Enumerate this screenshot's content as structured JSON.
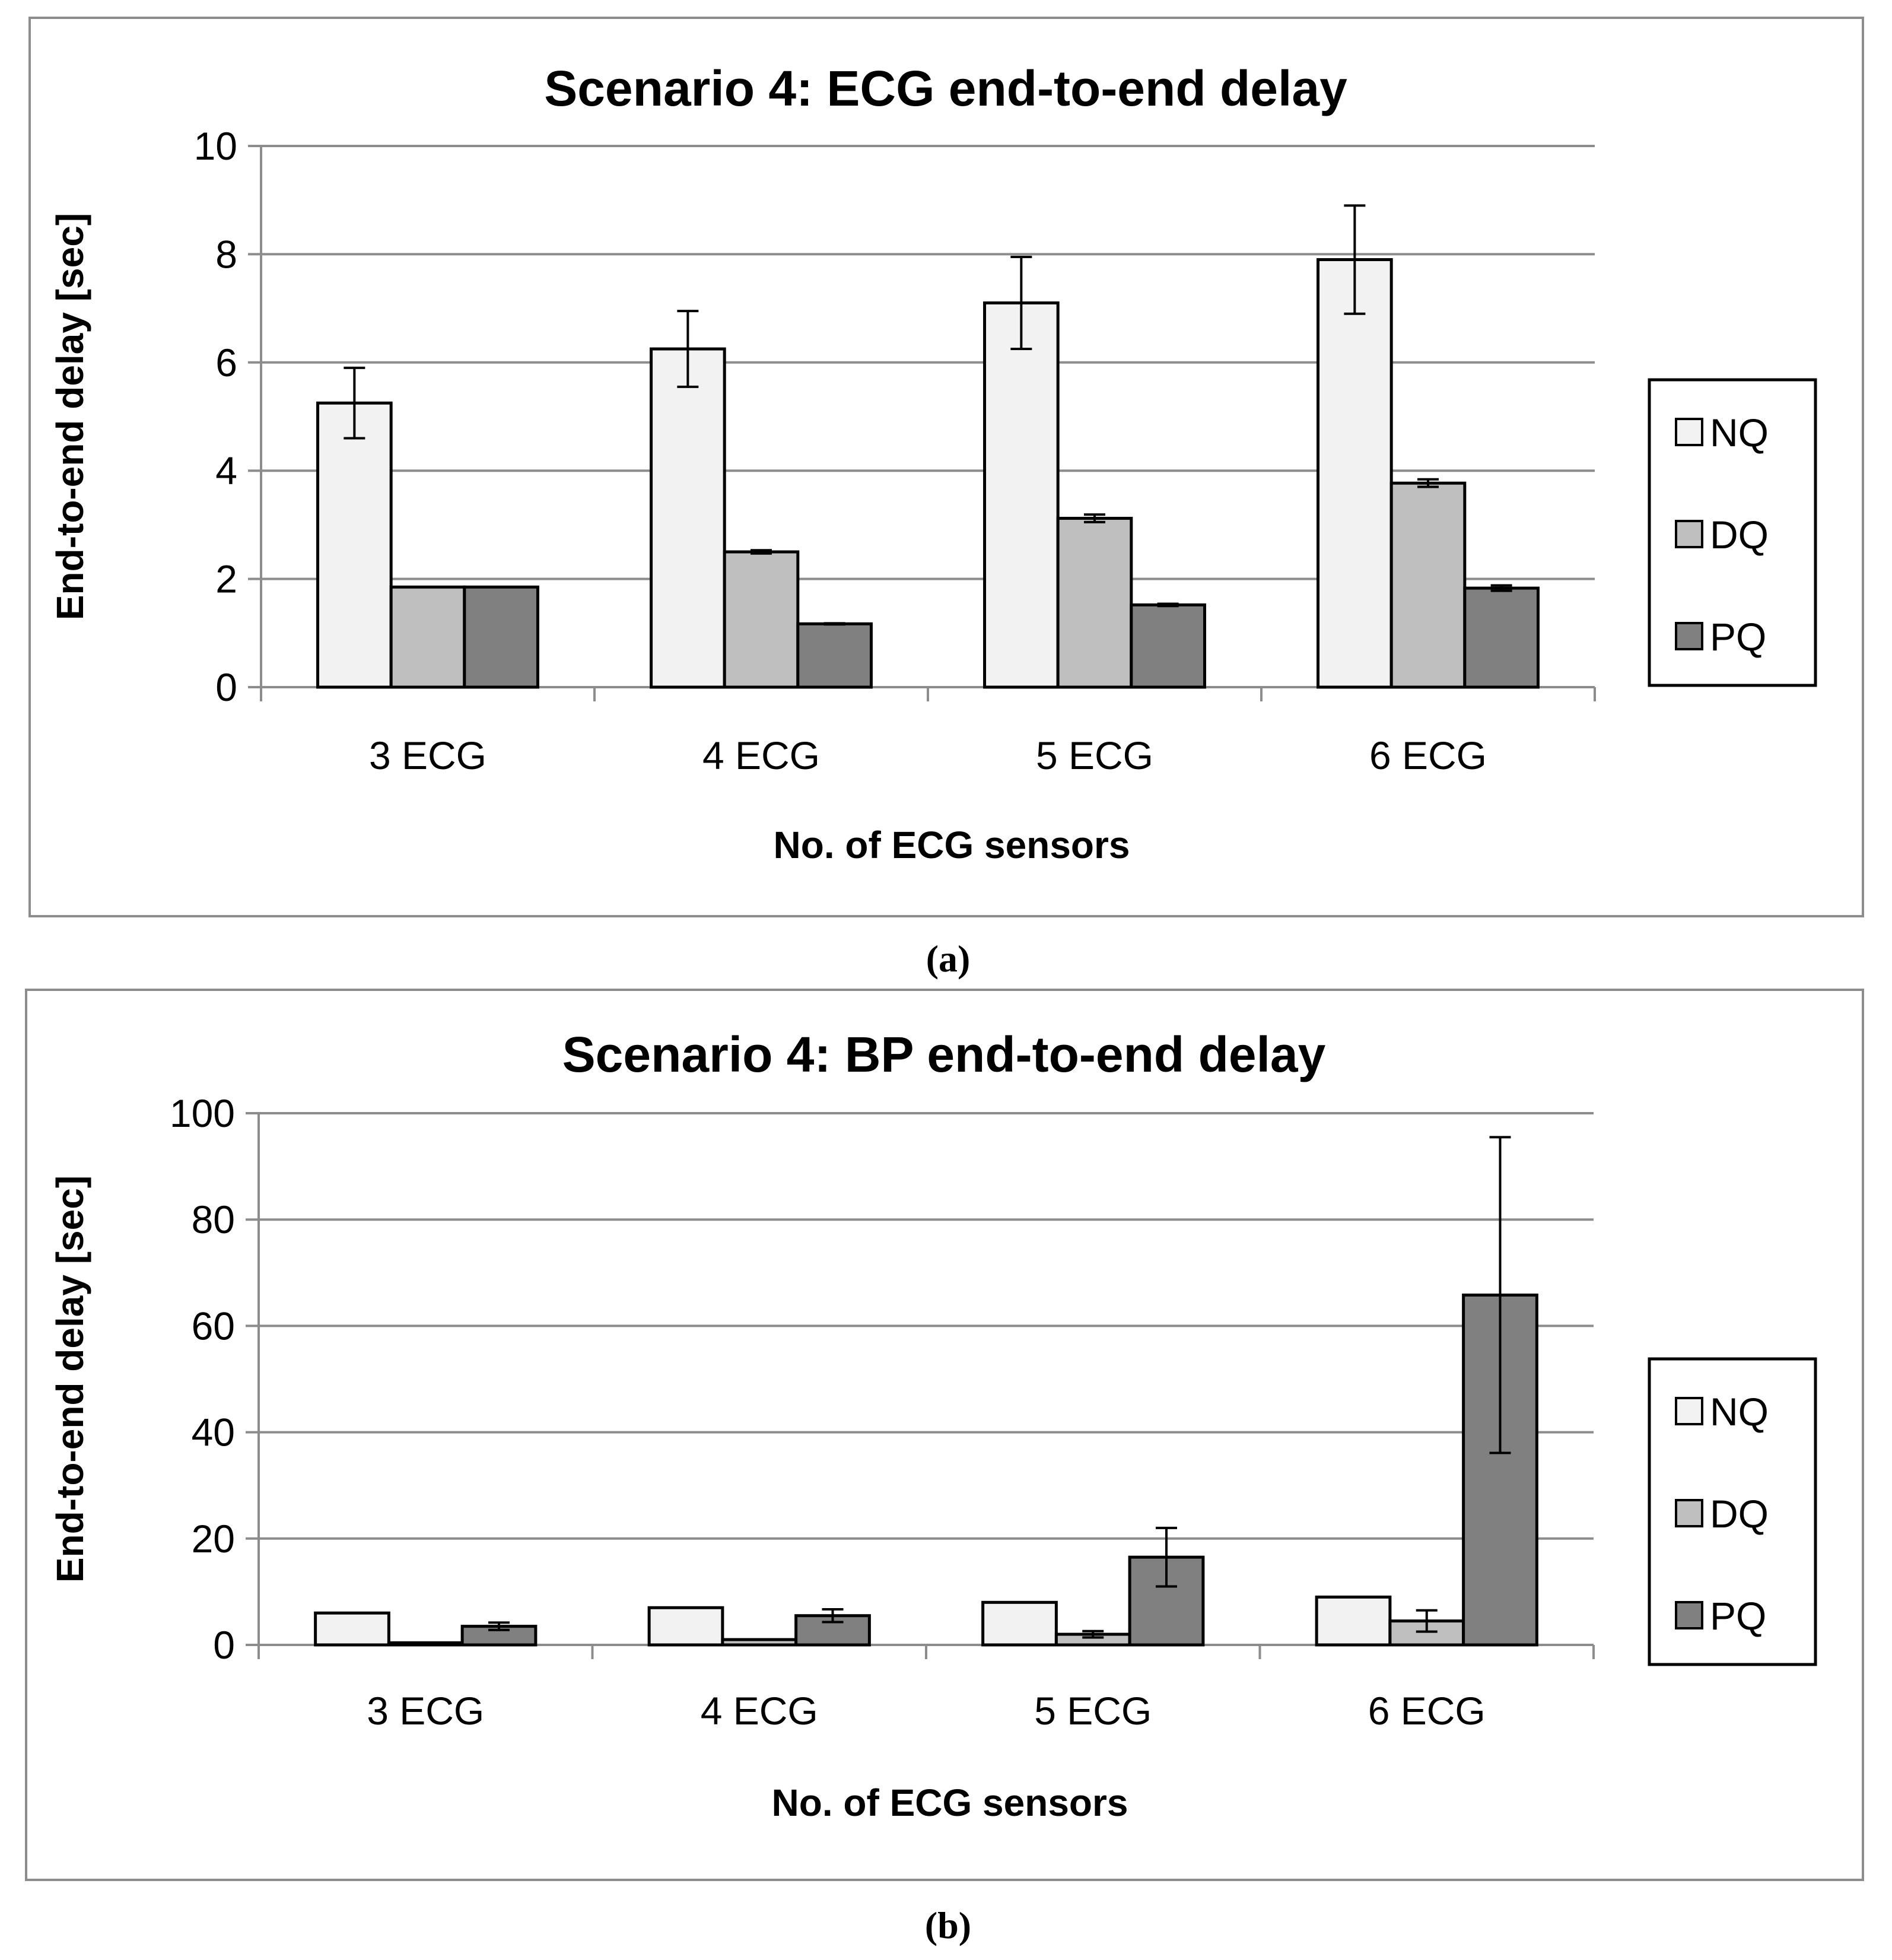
{
  "colors": {
    "NQ": "#f2f2f2",
    "DQ": "#bfbfbf",
    "PQ": "#808080",
    "grid": "#8c8c8c",
    "frame": "#8c8c8c"
  },
  "chart_data": [
    {
      "type": "bar",
      "panel_label": "(a)",
      "title": "Scenario 4:  ECG end-to-end delay",
      "xlabel": "No. of ECG sensors",
      "ylabel": "End-to-end delay [sec]",
      "categories": [
        "3 ECG",
        "4 ECG",
        "5 ECG",
        "6 ECG"
      ],
      "ylim": [
        0,
        10
      ],
      "yticks": [
        "0",
        "2",
        "4",
        "6",
        "8",
        "10"
      ],
      "grid": true,
      "legend": "right",
      "series": [
        {
          "name": "NQ",
          "values": [
            5.25,
            6.25,
            7.1,
            7.9
          ],
          "errors": [
            0.65,
            0.7,
            0.85,
            1.0
          ]
        },
        {
          "name": "DQ",
          "values": [
            1.85,
            2.5,
            3.12,
            3.77
          ],
          "errors": [
            0.0,
            0.03,
            0.07,
            0.07
          ]
        },
        {
          "name": "PQ",
          "values": [
            1.85,
            1.17,
            1.52,
            1.83
          ],
          "errors": [
            0.0,
            0.01,
            0.02,
            0.05
          ]
        }
      ]
    },
    {
      "type": "bar",
      "panel_label": "(b)",
      "title": "Scenario 4:  BP end-to-end delay",
      "xlabel": "No. of ECG sensors",
      "ylabel": "End-to-end delay [sec]",
      "categories": [
        "3 ECG",
        "4 ECG",
        "5 ECG",
        "6 ECG"
      ],
      "ylim": [
        0,
        100
      ],
      "yticks": [
        "0",
        "20",
        "40",
        "60",
        "80",
        "100"
      ],
      "grid": true,
      "legend": "right",
      "series": [
        {
          "name": "NQ",
          "values": [
            6.0,
            7.0,
            8.0,
            9.0
          ],
          "errors": [
            0,
            0,
            0,
            0
          ]
        },
        {
          "name": "DQ",
          "values": [
            0.4,
            1.0,
            2.0,
            4.5
          ],
          "errors": [
            0,
            0,
            0.6,
            2.0
          ]
        },
        {
          "name": "PQ",
          "values": [
            3.5,
            5.5,
            16.5,
            65.8
          ],
          "errors": [
            0.7,
            1.2,
            5.5,
            29.7
          ]
        }
      ]
    }
  ]
}
